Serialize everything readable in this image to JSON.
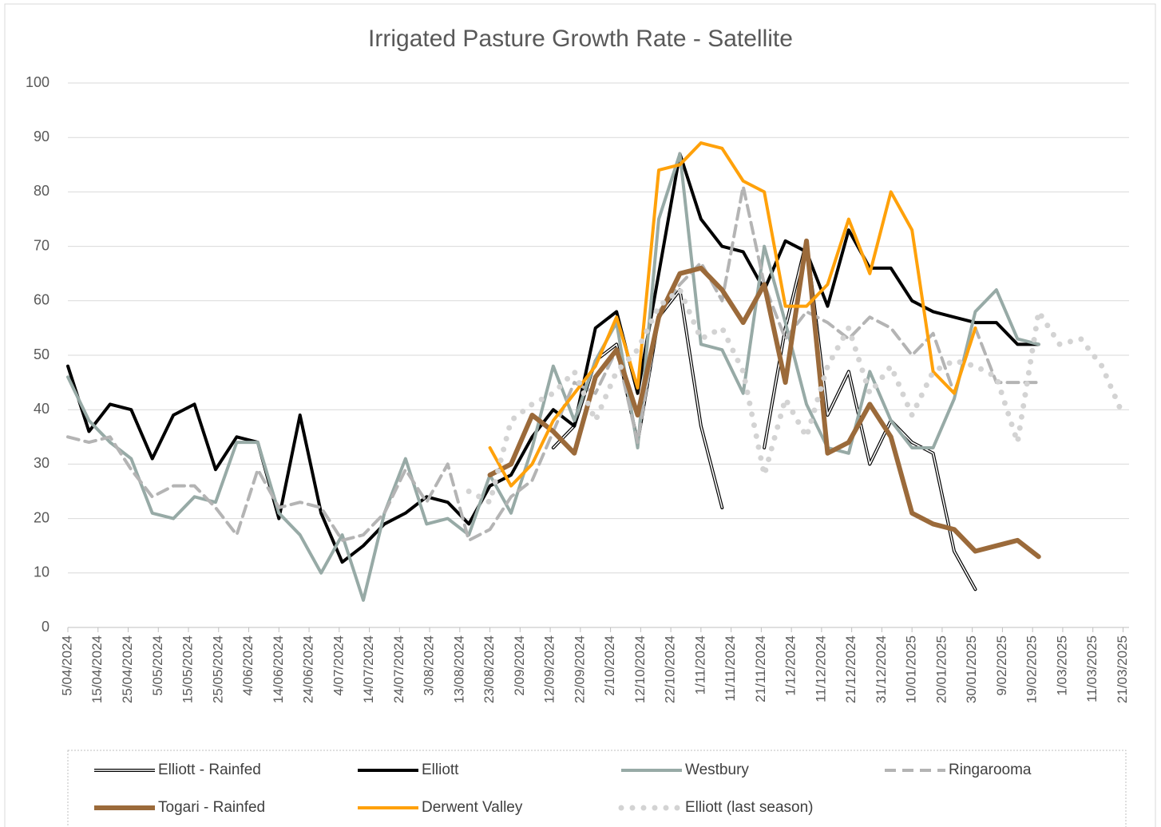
{
  "chart_data": {
    "type": "line",
    "title": "Irrigated Pasture Growth Rate  - Satellite",
    "x": [
      "2024-04-05",
      "2024-04-12",
      "2024-04-19",
      "2024-04-26",
      "2024-05-03",
      "2024-05-10",
      "2024-05-17",
      "2024-05-24",
      "2024-05-31",
      "2024-06-07",
      "2024-06-14",
      "2024-06-21",
      "2024-06-28",
      "2024-07-05",
      "2024-07-12",
      "2024-07-19",
      "2024-07-26",
      "2024-08-02",
      "2024-08-09",
      "2024-08-16",
      "2024-08-23",
      "2024-08-30",
      "2024-09-06",
      "2024-09-13",
      "2024-09-20",
      "2024-09-27",
      "2024-10-04",
      "2024-10-11",
      "2024-10-18",
      "2024-10-25",
      "2024-11-01",
      "2024-11-08",
      "2024-11-15",
      "2024-11-22",
      "2024-11-29",
      "2024-12-06",
      "2024-12-13",
      "2024-12-20",
      "2024-12-27",
      "2025-01-03",
      "2025-01-10",
      "2025-01-17",
      "2025-01-24",
      "2025-01-31",
      "2025-02-07",
      "2025-02-14",
      "2025-02-21",
      "2025-02-28",
      "2025-03-07",
      "2025-03-14",
      "2025-03-21"
    ],
    "series": [
      {
        "name": "Elliott - Rainfed",
        "color": "#000000",
        "line_style": "double",
        "values": [
          null,
          null,
          null,
          null,
          null,
          null,
          null,
          null,
          null,
          null,
          null,
          null,
          null,
          null,
          null,
          null,
          null,
          null,
          null,
          null,
          null,
          null,
          null,
          33,
          37,
          49,
          52,
          34,
          57,
          62,
          37,
          22,
          null,
          33,
          55,
          71,
          39,
          47,
          30,
          38,
          34,
          32,
          14,
          7,
          null,
          null,
          null,
          null,
          null,
          null,
          null
        ]
      },
      {
        "name": "Elliott",
        "color": "#000000",
        "line_style": "solid",
        "values": [
          48,
          36,
          41,
          40,
          31,
          39,
          41,
          29,
          35,
          34,
          20,
          39,
          21,
          12,
          15,
          19,
          21,
          24,
          23,
          19,
          26,
          28,
          35,
          40,
          37,
          55,
          58,
          43,
          65,
          87,
          75,
          70,
          69,
          62,
          71,
          69,
          59,
          73,
          66,
          66,
          60,
          58,
          57,
          56,
          56,
          52,
          52,
          null,
          null,
          null,
          null
        ]
      },
      {
        "name": "Westbury",
        "color": "#97aaa6",
        "line_style": "solid",
        "values": [
          46,
          38,
          34,
          31,
          21,
          20,
          24,
          23,
          34,
          34,
          21,
          17,
          10,
          17,
          5,
          21,
          31,
          19,
          20,
          17,
          28,
          21,
          33,
          48,
          38,
          49,
          56,
          33,
          75,
          87,
          52,
          51,
          43,
          70,
          56,
          41,
          33,
          32,
          47,
          38,
          33,
          33,
          42,
          58,
          62,
          53,
          52,
          null,
          null,
          null,
          null
        ]
      },
      {
        "name": "Ringarooma",
        "color": "#b4b4b4",
        "line_style": "dashed",
        "values": [
          35,
          34,
          35,
          29,
          24,
          26,
          26,
          22,
          17,
          29,
          22,
          23,
          22,
          16,
          17,
          21,
          29,
          23,
          30,
          16,
          18,
          24,
          27,
          36,
          45,
          43,
          51,
          34,
          58,
          63,
          67,
          60,
          81,
          63,
          53,
          58,
          56,
          53,
          57,
          55,
          50,
          54,
          43,
          55,
          45,
          45,
          45,
          null,
          null,
          null,
          null
        ]
      },
      {
        "name": "Togari - Rainfed",
        "color": "#9b6a3a",
        "line_style": "solid",
        "values": [
          null,
          null,
          null,
          null,
          null,
          null,
          null,
          null,
          null,
          null,
          null,
          null,
          null,
          null,
          null,
          null,
          null,
          null,
          null,
          null,
          28,
          30,
          39,
          36,
          32,
          46,
          51,
          39,
          57,
          65,
          66,
          62,
          56,
          63,
          45,
          71,
          32,
          34,
          41,
          35,
          21,
          19,
          18,
          14,
          15,
          16,
          13,
          null,
          null,
          null,
          null
        ]
      },
      {
        "name": "Derwent Valley",
        "color": "#ffa10a",
        "line_style": "solid",
        "values": [
          null,
          null,
          null,
          null,
          null,
          null,
          null,
          null,
          null,
          null,
          null,
          null,
          null,
          null,
          null,
          null,
          null,
          null,
          null,
          null,
          33,
          26,
          30,
          38,
          43,
          48,
          57,
          44,
          84,
          85,
          89,
          88,
          82,
          80,
          59,
          59,
          63,
          75,
          65,
          80,
          73,
          47,
          43,
          55,
          null,
          null,
          null,
          null,
          null,
          null,
          null
        ]
      },
      {
        "name": "Elliott (last season)",
        "color": "#d3d3d3",
        "line_style": "dotted",
        "values": [
          null,
          null,
          null,
          null,
          null,
          null,
          null,
          null,
          null,
          null,
          null,
          null,
          null,
          null,
          null,
          null,
          null,
          null,
          null,
          25,
          23,
          38,
          41,
          43,
          47,
          38,
          47,
          51,
          59,
          62,
          53,
          55,
          47,
          28,
          42,
          35,
          48,
          55,
          43,
          48,
          39,
          47,
          49,
          48,
          46,
          34,
          58,
          52,
          53,
          48,
          39
        ]
      }
    ],
    "xlim": [
      "2024-04-05",
      "2025-03-23"
    ],
    "xticks": [
      {
        "value": "2024-04-05",
        "label": "5/04/2024"
      },
      {
        "value": "2024-04-15",
        "label": "15/04/2024"
      },
      {
        "value": "2024-04-25",
        "label": "25/04/2024"
      },
      {
        "value": "2024-05-05",
        "label": "5/05/2024"
      },
      {
        "value": "2024-05-15",
        "label": "15/05/2024"
      },
      {
        "value": "2024-05-25",
        "label": "25/05/2024"
      },
      {
        "value": "2024-06-04",
        "label": "4/06/2024"
      },
      {
        "value": "2024-06-14",
        "label": "14/06/2024"
      },
      {
        "value": "2024-06-24",
        "label": "24/06/2024"
      },
      {
        "value": "2024-07-04",
        "label": "4/07/2024"
      },
      {
        "value": "2024-07-14",
        "label": "14/07/2024"
      },
      {
        "value": "2024-07-24",
        "label": "24/07/2024"
      },
      {
        "value": "2024-08-03",
        "label": "3/08/2024"
      },
      {
        "value": "2024-08-13",
        "label": "13/08/2024"
      },
      {
        "value": "2024-08-23",
        "label": "23/08/2024"
      },
      {
        "value": "2024-09-02",
        "label": "2/09/2024"
      },
      {
        "value": "2024-09-12",
        "label": "12/09/2024"
      },
      {
        "value": "2024-09-22",
        "label": "22/09/2024"
      },
      {
        "value": "2024-10-02",
        "label": "2/10/2024"
      },
      {
        "value": "2024-10-12",
        "label": "12/10/2024"
      },
      {
        "value": "2024-10-22",
        "label": "22/10/2024"
      },
      {
        "value": "2024-11-01",
        "label": "1/11/2024"
      },
      {
        "value": "2024-11-11",
        "label": "11/11/2024"
      },
      {
        "value": "2024-11-21",
        "label": "21/11/2024"
      },
      {
        "value": "2024-12-01",
        "label": "1/12/2024"
      },
      {
        "value": "2024-12-11",
        "label": "11/12/2024"
      },
      {
        "value": "2024-12-21",
        "label": "21/12/2024"
      },
      {
        "value": "2024-12-31",
        "label": "31/12/2024"
      },
      {
        "value": "2025-01-10",
        "label": "10/01/2025"
      },
      {
        "value": "2025-01-20",
        "label": "20/01/2025"
      },
      {
        "value": "2025-01-30",
        "label": "30/01/2025"
      },
      {
        "value": "2025-02-09",
        "label": "9/02/2025"
      },
      {
        "value": "2025-02-19",
        "label": "19/02/2025"
      },
      {
        "value": "2025-03-01",
        "label": "1/03/2025"
      },
      {
        "value": "2025-03-11",
        "label": "11/03/2025"
      },
      {
        "value": "2025-03-21",
        "label": "21/03/2025"
      }
    ],
    "ylim": [
      0,
      100
    ],
    "yticks": [
      0,
      10,
      20,
      30,
      40,
      50,
      60,
      70,
      80,
      90,
      100
    ],
    "grid": true,
    "legend": "bottom"
  }
}
